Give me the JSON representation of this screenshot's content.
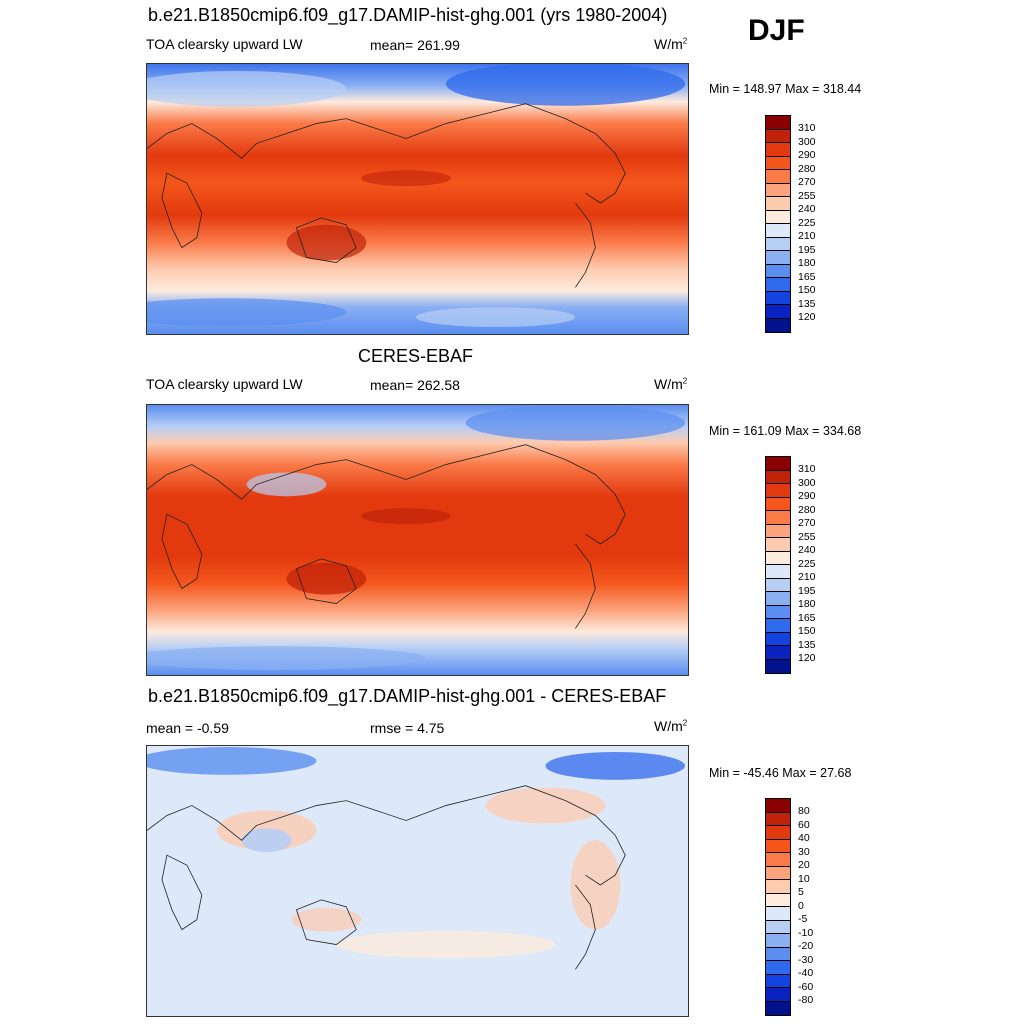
{
  "season": "DJF",
  "panels": [
    {
      "title": "b.e21.B1850cmip6.f09_g17.DAMIP-hist-ghg.001 (yrs 1980-2004)",
      "left_label": "TOA clearsky upward LW",
      "mid_label": "mean= 261.99",
      "units": "W/m",
      "units_sup": "2",
      "minmax": "Min = 148.97 Max = 318.44",
      "colorbar": {
        "colors": [
          "#8b0000",
          "#c1230a",
          "#e23a0e",
          "#f4561c",
          "#fa7a48",
          "#fca27c",
          "#fdcbb0",
          "#fdebdd",
          "#dde8f8",
          "#b7cef5",
          "#8ab0f2",
          "#5b8ef0",
          "#2f6aec",
          "#1444e0",
          "#0a22c0",
          "#00128c"
        ],
        "labels": [
          "310",
          "300",
          "290",
          "280",
          "270",
          "255",
          "240",
          "225",
          "210",
          "195",
          "180",
          "165",
          "150",
          "135",
          "120"
        ]
      }
    },
    {
      "title": "CERES-EBAF",
      "left_label": "TOA clearsky upward LW",
      "mid_label": "mean= 262.58",
      "units": "W/m",
      "units_sup": "2",
      "minmax": "Min = 161.09 Max = 334.68",
      "colorbar": {
        "colors": [
          "#8b0000",
          "#c1230a",
          "#e23a0e",
          "#f4561c",
          "#fa7a48",
          "#fca27c",
          "#fdcbb0",
          "#fdebdd",
          "#dde8f8",
          "#b7cef5",
          "#8ab0f2",
          "#5b8ef0",
          "#2f6aec",
          "#1444e0",
          "#0a22c0",
          "#00128c"
        ],
        "labels": [
          "310",
          "300",
          "290",
          "280",
          "270",
          "255",
          "240",
          "225",
          "210",
          "195",
          "180",
          "165",
          "150",
          "135",
          "120"
        ]
      }
    },
    {
      "title": "b.e21.B1850cmip6.f09_g17.DAMIP-hist-ghg.001 - CERES-EBAF",
      "left_label": "mean =  -0.59",
      "mid_label": "rmse =   4.75",
      "units": "W/m",
      "units_sup": "2",
      "minmax": "Min = -45.46 Max =  27.68",
      "colorbar": {
        "colors": [
          "#8b0000",
          "#c1230a",
          "#e23a0e",
          "#f4561c",
          "#fa7a48",
          "#fca27c",
          "#fdcbb0",
          "#fdebdd",
          "#dde8f8",
          "#b7cef5",
          "#8ab0f2",
          "#5b8ef0",
          "#2f6aec",
          "#1444e0",
          "#0a22c0",
          "#00128c"
        ],
        "labels": [
          "80",
          "60",
          "40",
          "30",
          "20",
          "10",
          "5",
          "0",
          "-5",
          "-10",
          "-20",
          "-30",
          "-40",
          "-60",
          "-80"
        ]
      }
    }
  ]
}
